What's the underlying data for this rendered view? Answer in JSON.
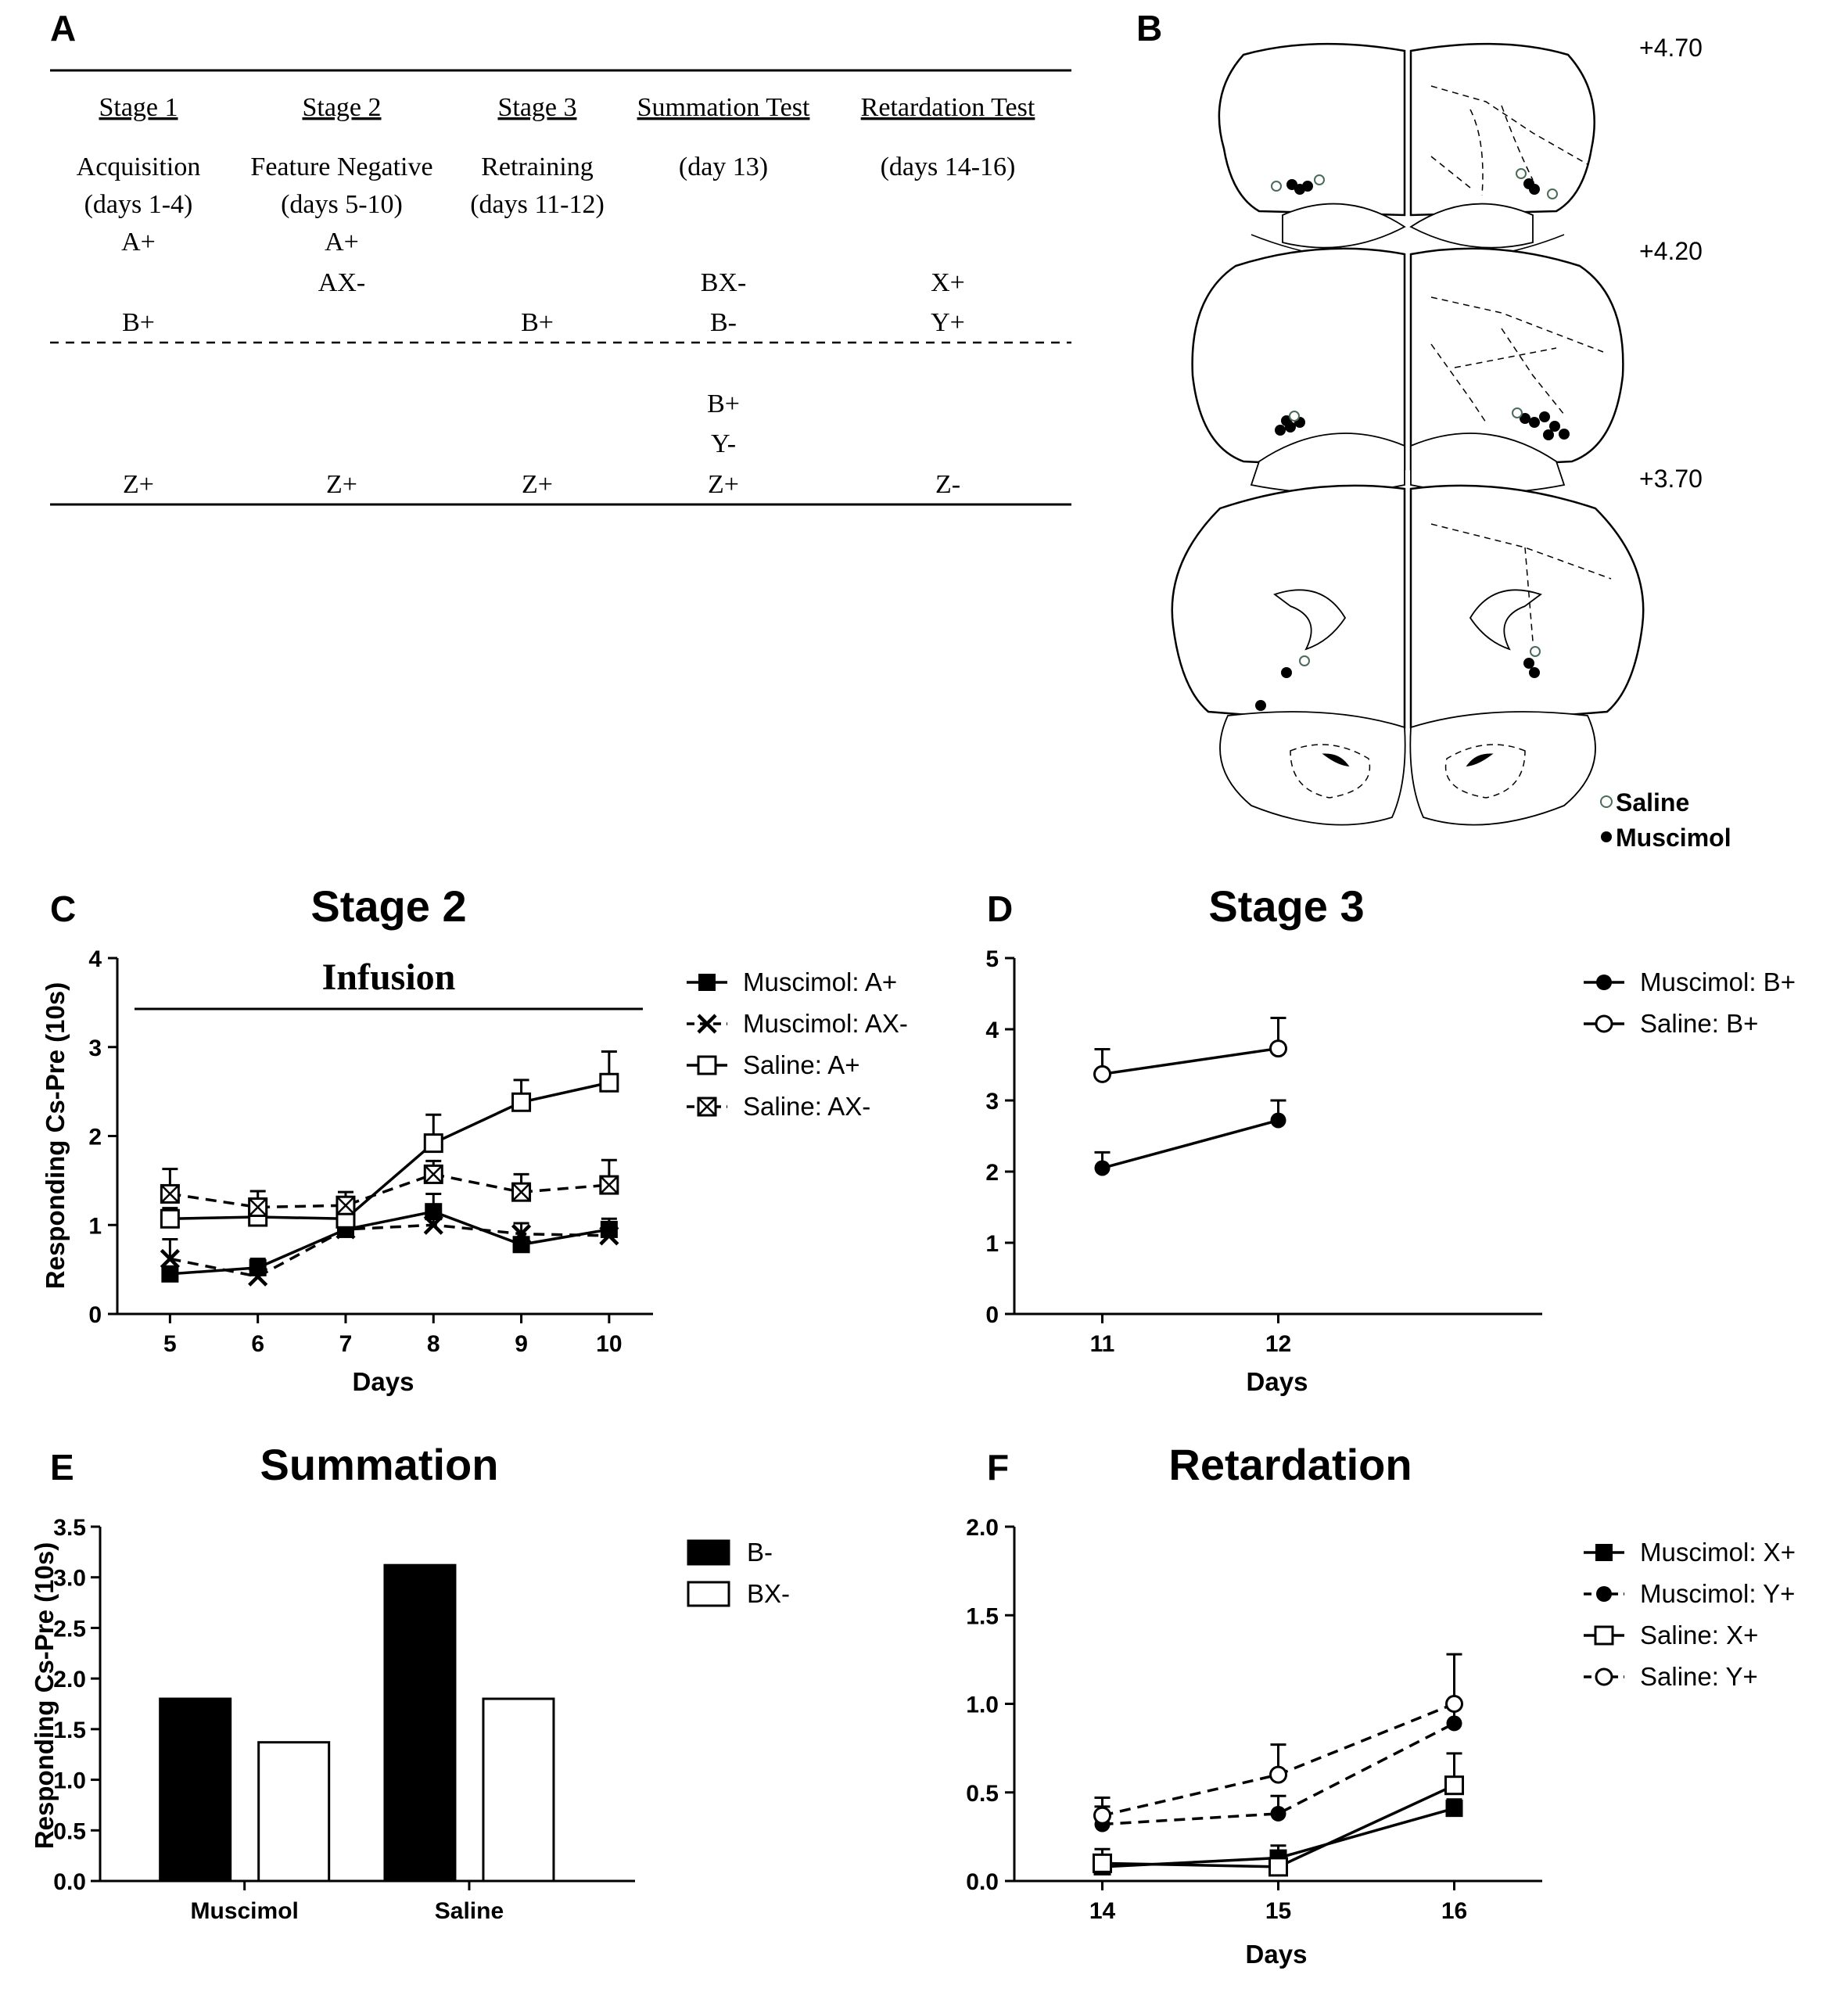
{
  "panel_a": {
    "letter": "A",
    "headers": [
      "Stage 1",
      "Stage 2",
      "Stage 3",
      "Summation Test",
      "Retardation Test"
    ],
    "phases": [
      [
        "Acquisition",
        "(days 1-4)"
      ],
      [
        "Feature Negative",
        "(days 5-10)"
      ],
      [
        "Retraining",
        "(days 11-12)"
      ],
      [
        "(day 13)"
      ],
      [
        "(days 14-16)"
      ]
    ],
    "cells": [
      {
        "col": 0,
        "row": 0,
        "text": "A+"
      },
      {
        "col": 1,
        "row": 0,
        "text": "A+"
      },
      {
        "col": 1,
        "row": 1,
        "text": "AX-"
      },
      {
        "col": 3,
        "row": 1,
        "text": "BX-"
      },
      {
        "col": 4,
        "row": 1,
        "text": "X+"
      },
      {
        "col": 0,
        "row": 2,
        "text": "B+"
      },
      {
        "col": 2,
        "row": 2,
        "text": "B+"
      },
      {
        "col": 3,
        "row": 2,
        "text": "B-"
      },
      {
        "col": 4,
        "row": 2,
        "text": "Y+"
      },
      {
        "col": 3,
        "row": 3,
        "text": "B+"
      },
      {
        "col": 3,
        "row": 4,
        "text": "Y-"
      },
      {
        "col": 0,
        "row": 5,
        "text": "Z+"
      },
      {
        "col": 1,
        "row": 5,
        "text": "Z+"
      },
      {
        "col": 2,
        "row": 5,
        "text": "Z+"
      },
      {
        "col": 3,
        "row": 5,
        "text": "Z+"
      },
      {
        "col": 4,
        "row": 5,
        "text": "Z-"
      }
    ]
  },
  "panel_b": {
    "letter": "B",
    "levels": [
      "+4.70",
      "+4.20",
      "+3.70"
    ],
    "legend": [
      "Saline",
      "Muscimol"
    ]
  },
  "chart_data": [
    {
      "id": "C",
      "type": "line",
      "letter": "C",
      "title": "Stage 2",
      "annotation": "Infusion",
      "xlabel": "Days",
      "ylabel": "Responding Cs-Pre (10s)",
      "x": [
        5,
        6,
        7,
        8,
        9,
        10
      ],
      "xlim": [
        4.4,
        10.5
      ],
      "ylim": [
        0,
        4
      ],
      "yticks": [
        "0",
        "1",
        "2",
        "3",
        "4"
      ],
      "series": [
        {
          "name": "Muscimol: A+",
          "marker": "filled-square",
          "dash": false,
          "values": [
            0.45,
            0.52,
            0.95,
            1.15,
            0.78,
            0.95
          ],
          "err": [
            0.08,
            0.1,
            0.08,
            0.2,
            0.08,
            0.12
          ]
        },
        {
          "name": "Muscimol: AX-",
          "marker": "x",
          "dash": true,
          "values": [
            0.62,
            0.42,
            0.95,
            1.0,
            0.9,
            0.88
          ],
          "err": [
            0.22,
            0.1,
            0.08,
            0.1,
            0.12,
            0.12
          ]
        },
        {
          "name": "Saline: A+",
          "marker": "open-square",
          "dash": false,
          "values": [
            1.07,
            1.09,
            1.07,
            1.92,
            2.38,
            2.6
          ],
          "err": [
            0.12,
            0.12,
            0.12,
            0.32,
            0.25,
            0.35
          ]
        },
        {
          "name": "Saline: AX-",
          "marker": "boxed-x",
          "dash": true,
          "values": [
            1.35,
            1.2,
            1.22,
            1.57,
            1.37,
            1.45
          ],
          "err": [
            0.28,
            0.18,
            0.15,
            0.15,
            0.2,
            0.28
          ]
        }
      ]
    },
    {
      "id": "D",
      "type": "line",
      "letter": "D",
      "title": "Stage 3",
      "xlabel": "Days",
      "x": [
        11,
        12
      ],
      "xlim": [
        10.5,
        13.5
      ],
      "ylim": [
        0,
        5
      ],
      "yticks": [
        "0",
        "1",
        "2",
        "3",
        "4",
        "5"
      ],
      "series": [
        {
          "name": "Muscimol: B+",
          "marker": "filled-circle",
          "dash": false,
          "values": [
            2.05,
            2.72
          ],
          "err": [
            0.22,
            0.28
          ]
        },
        {
          "name": "Saline: B+",
          "marker": "open-circle",
          "dash": false,
          "values": [
            3.37,
            3.73
          ],
          "err": [
            0.35,
            0.43
          ]
        }
      ]
    },
    {
      "id": "E",
      "type": "bar",
      "letter": "E",
      "title": "Summation",
      "ylabel": "Responding Cs-Pre (10s)",
      "categories": [
        "Muscimol",
        "Saline"
      ],
      "ylim": [
        0,
        3.5
      ],
      "yticks": [
        "0.0",
        "0.5",
        "1.0",
        "1.5",
        "2.0",
        "2.5",
        "3.0",
        "3.5"
      ],
      "series": [
        {
          "name": "B-",
          "fill": "#000000",
          "values": [
            1.8,
            3.12
          ]
        },
        {
          "name": "BX-",
          "fill": "#ffffff",
          "values": [
            1.37,
            1.8
          ]
        }
      ]
    },
    {
      "id": "F",
      "type": "line",
      "letter": "F",
      "title": "Retardation",
      "xlabel": "Days",
      "x": [
        14,
        15,
        16
      ],
      "xlim": [
        13.5,
        16.5
      ],
      "ylim": [
        0,
        2
      ],
      "yticks": [
        "0.0",
        "0.5",
        "1.0",
        "1.5",
        "2.0"
      ],
      "series": [
        {
          "name": "Muscimol: X+",
          "marker": "filled-square",
          "dash": false,
          "values": [
            0.08,
            0.13,
            0.41
          ],
          "err": [
            0.06,
            0.07,
            0.05
          ]
        },
        {
          "name": "Muscimol: Y+",
          "marker": "filled-circle",
          "dash": true,
          "values": [
            0.32,
            0.38,
            0.89
          ],
          "err": [
            0.1,
            0.1,
            0.12
          ]
        },
        {
          "name": "Saline: X+",
          "marker": "open-square",
          "dash": false,
          "values": [
            0.1,
            0.08,
            0.54
          ],
          "err": [
            0.08,
            0.06,
            0.18
          ]
        },
        {
          "name": "Saline: Y+",
          "marker": "open-circle",
          "dash": true,
          "values": [
            0.37,
            0.6,
            1.0
          ],
          "err": [
            0.1,
            0.17,
            0.28
          ]
        }
      ]
    }
  ]
}
